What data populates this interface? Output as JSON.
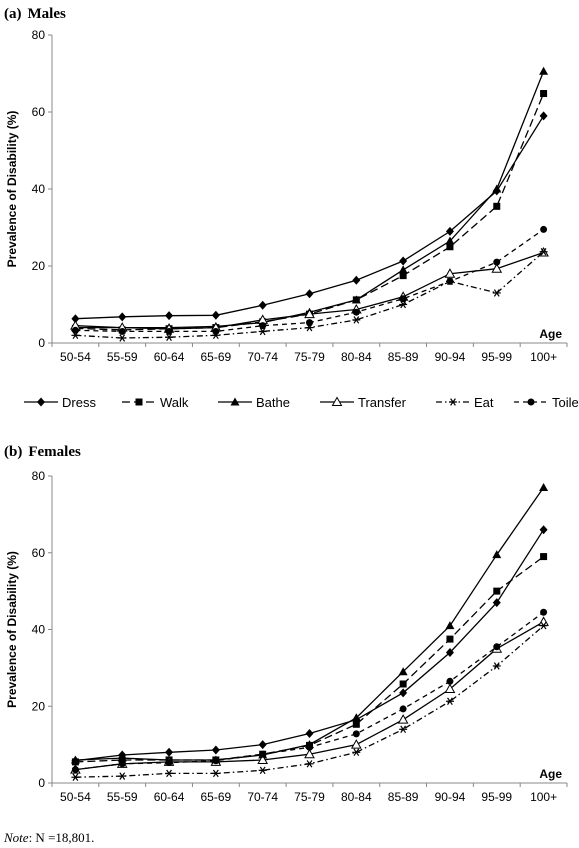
{
  "note": {
    "prefix": "Note",
    "body": ": N =18,801."
  },
  "chart_data": [
    {
      "type": "line",
      "panel": "(a)",
      "title": "Males",
      "ylabel": "Prevalence of Disability (%)",
      "xlabel": "Age",
      "ylim": [
        0,
        80
      ],
      "yticks": [
        0,
        20,
        40,
        60,
        80
      ],
      "categories": [
        "50-54",
        "55-59",
        "60-64",
        "65-69",
        "70-74",
        "75-79",
        "80-84",
        "85-89",
        "90-94",
        "95-99",
        "100+"
      ],
      "series": [
        {
          "name": "Dress",
          "values": [
            6.3,
            6.8,
            7.1,
            7.2,
            9.8,
            12.8,
            16.3,
            21.3,
            29.0,
            39.5,
            59.0
          ]
        },
        {
          "name": "Walk",
          "values": [
            3.8,
            3.4,
            3.7,
            4.0,
            5.5,
            7.5,
            11.2,
            17.5,
            25.0,
            35.5,
            64.8
          ]
        },
        {
          "name": "Bathe",
          "values": [
            4.0,
            4.0,
            4.0,
            4.3,
            5.3,
            8.0,
            11.2,
            19.0,
            26.5,
            40.0,
            70.6
          ]
        },
        {
          "name": "Transfer",
          "values": [
            4.5,
            4.0,
            3.7,
            4.0,
            6.0,
            7.5,
            8.7,
            12.0,
            18.0,
            19.3,
            23.5
          ]
        },
        {
          "name": "Eat",
          "values": [
            2.0,
            1.3,
            1.5,
            2.0,
            3.0,
            4.0,
            6.0,
            10.0,
            16.0,
            13.0,
            23.7
          ]
        },
        {
          "name": "Toilet",
          "values": [
            3.3,
            3.0,
            3.0,
            3.0,
            4.5,
            5.3,
            8.0,
            11.5,
            16.0,
            21.0,
            29.5
          ]
        }
      ]
    },
    {
      "type": "line",
      "panel": "(b)",
      "title": "Females",
      "ylabel": "Prevalence of Disability (%)",
      "xlabel": "Age",
      "ylim": [
        0,
        80
      ],
      "yticks": [
        0,
        20,
        40,
        60,
        80
      ],
      "categories": [
        "50-54",
        "55-59",
        "60-64",
        "65-69",
        "70-74",
        "75-79",
        "80-84",
        "85-89",
        "90-94",
        "95-99",
        "100+"
      ],
      "series": [
        {
          "name": "Dress",
          "values": [
            5.8,
            7.3,
            8.0,
            8.6,
            10.0,
            12.9,
            16.5,
            23.5,
            34.0,
            47.0,
            66.0
          ]
        },
        {
          "name": "Walk",
          "values": [
            5.5,
            6.0,
            6.0,
            6.0,
            7.5,
            9.8,
            15.3,
            25.8,
            37.5,
            50.0,
            59.0
          ]
        },
        {
          "name": "Bathe",
          "values": [
            6.0,
            6.5,
            6.0,
            6.0,
            7.3,
            10.0,
            17.0,
            29.0,
            41.0,
            59.5,
            77.0
          ]
        },
        {
          "name": "Transfer",
          "values": [
            3.5,
            5.0,
            5.5,
            5.5,
            6.0,
            7.5,
            10.0,
            16.5,
            24.5,
            35.0,
            42.0
          ]
        },
        {
          "name": "Eat",
          "values": [
            1.5,
            1.8,
            2.5,
            2.5,
            3.3,
            5.0,
            8.0,
            14.0,
            21.3,
            30.5,
            41.0
          ]
        },
        {
          "name": "Toilet",
          "values": [
            3.5,
            5.0,
            5.3,
            5.8,
            7.5,
            9.3,
            12.8,
            19.3,
            26.5,
            35.5,
            44.5
          ]
        }
      ]
    }
  ],
  "styles": {
    "Dress": {
      "dash": "",
      "marker": "diamond",
      "color": "#000000"
    },
    "Walk": {
      "dash": "8,4",
      "marker": "square",
      "color": "#000000"
    },
    "Bathe": {
      "dash": "",
      "marker": "triangle",
      "color": "#000000"
    },
    "Transfer": {
      "dash": "",
      "marker": "triangle-open",
      "color": "#000000"
    },
    "Eat": {
      "dash": "6,3,1.5,3",
      "marker": "asterisk",
      "color": "#000000"
    },
    "Toilet": {
      "dash": "5,4",
      "marker": "circle",
      "color": "#000000"
    }
  }
}
